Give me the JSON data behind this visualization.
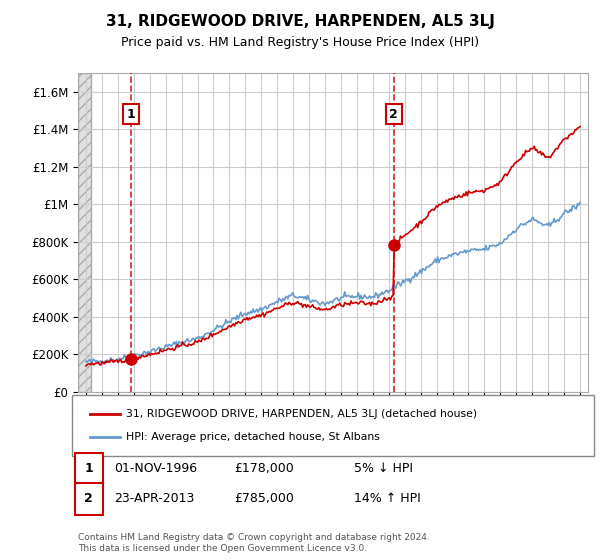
{
  "title": "31, RIDGEWOOD DRIVE, HARPENDEN, AL5 3LJ",
  "subtitle": "Price paid vs. HM Land Registry's House Price Index (HPI)",
  "ylabel_ticks": [
    0,
    200000,
    400000,
    600000,
    800000,
    1000000,
    1200000,
    1400000,
    1600000
  ],
  "ylim": [
    0,
    1700000
  ],
  "xlim_start": 1993.5,
  "xlim_end": 2025.5,
  "sale1_x": 1996.83,
  "sale1_y": 178000,
  "sale1_label": "1",
  "sale2_x": 2013.31,
  "sale2_y": 785000,
  "sale2_label": "2",
  "legend_line1": "31, RIDGEWOOD DRIVE, HARPENDEN, AL5 3LJ (detached house)",
  "legend_line2": "HPI: Average price, detached house, St Albans",
  "annotation1_num": "1",
  "annotation1_date": "01-NOV-1996",
  "annotation1_price": "£178,000",
  "annotation1_hpi": "5% ↓ HPI",
  "annotation2_num": "2",
  "annotation2_date": "23-APR-2013",
  "annotation2_price": "£785,000",
  "annotation2_hpi": "14% ↑ HPI",
  "footer": "Contains HM Land Registry data © Crown copyright and database right 2024.\nThis data is licensed under the Open Government Licence v3.0.",
  "red_color": "#cc0000",
  "blue_color": "#6699cc",
  "grid_color": "#cccccc"
}
